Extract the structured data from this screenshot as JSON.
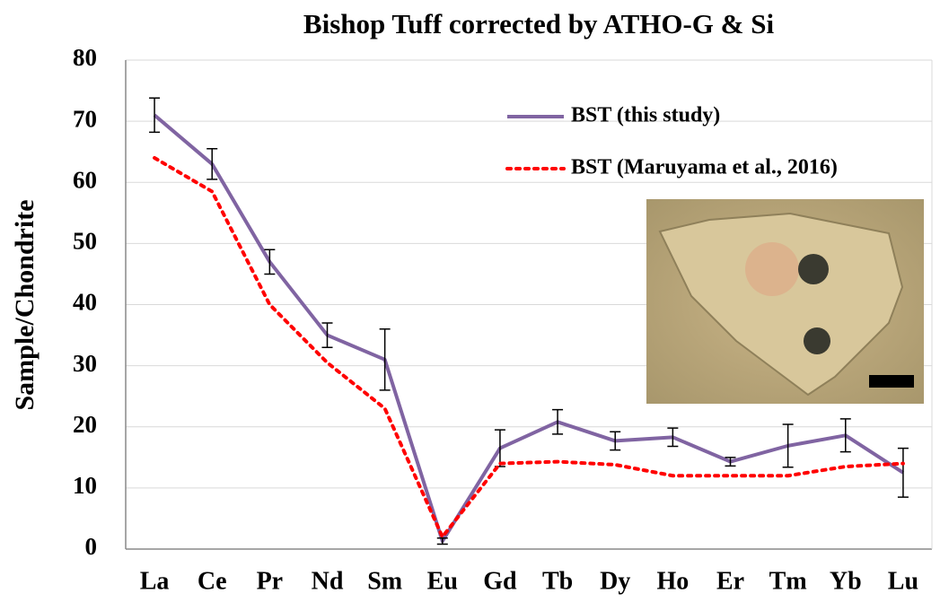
{
  "chart_data": {
    "type": "line",
    "title": "Bishop Tuff corrected by ATHO-G & Si",
    "y_label": "Sample/Chondrite",
    "categories": [
      "La",
      "Ce",
      "Pr",
      "Nd",
      "Sm",
      "Eu",
      "Gd",
      "Tb",
      "Dy",
      "Ho",
      "Er",
      "Tm",
      "Yb",
      "Lu"
    ],
    "series": [
      {
        "name": "BST (this study)",
        "color": "#8064a2",
        "style": "solid",
        "values": [
          71,
          63,
          47,
          35,
          31,
          1.3,
          16.5,
          20.8,
          17.7,
          18.3,
          14.3,
          16.9,
          18.6,
          12.5
        ],
        "errors": [
          2.8,
          2.5,
          2,
          2,
          5,
          0.5,
          3,
          2,
          1.5,
          1.5,
          0.7,
          3.5,
          2.7,
          4
        ]
      },
      {
        "name": "BST (Maruyama et al., 2016)",
        "color": "#ff0000",
        "style": "dotted",
        "values": [
          64,
          58.5,
          40,
          30.5,
          23,
          2,
          14,
          14.3,
          13.8,
          12,
          12,
          12,
          13.5,
          14
        ]
      }
    ],
    "ylim": [
      0,
      80
    ],
    "yticks": [
      0,
      10,
      20,
      30,
      40,
      50,
      60,
      70,
      80
    ],
    "grid": true,
    "legend": "upper right"
  }
}
